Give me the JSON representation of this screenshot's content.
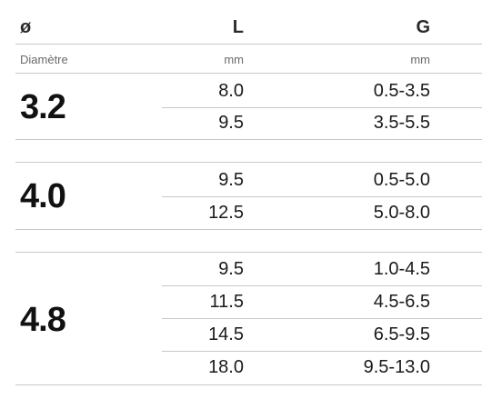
{
  "header": {
    "diameter_symbol": "ø",
    "length_symbol": "L",
    "grip_symbol": "G"
  },
  "subheader": {
    "diameter_label": "Diamètre",
    "length_unit": "mm",
    "grip_unit": "mm"
  },
  "groups": [
    {
      "diameter": "3.2",
      "rows": [
        {
          "L": "8.0",
          "G": "0.5-3.5"
        },
        {
          "L": "9.5",
          "G": "3.5-5.5"
        }
      ]
    },
    {
      "diameter": "4.0",
      "rows": [
        {
          "L": "9.5",
          "G": "0.5-5.0"
        },
        {
          "L": "12.5",
          "G": "5.0-8.0"
        }
      ]
    },
    {
      "diameter": "4.8",
      "rows": [
        {
          "L": "9.5",
          "G": "1.0-4.5"
        },
        {
          "L": "11.5",
          "G": "4.5-6.5"
        },
        {
          "L": "14.5",
          "G": "6.5-9.5"
        },
        {
          "L": "18.0",
          "G": "9.5-13.0"
        }
      ]
    }
  ]
}
